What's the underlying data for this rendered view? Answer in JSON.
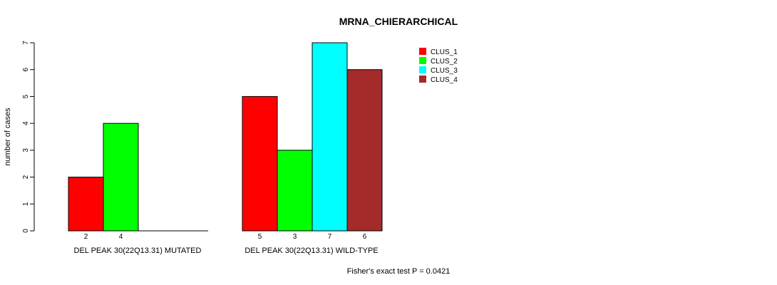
{
  "chart_data": {
    "type": "bar",
    "title": "MRNA_CHIERARCHICAL",
    "ylabel": "number of cases",
    "ylim": [
      0,
      7
    ],
    "yticks": [
      "0",
      "1",
      "2",
      "3",
      "4",
      "5",
      "6",
      "7"
    ],
    "groups": [
      {
        "label": "DEL PEAK 30(22Q13.31) MUTATED",
        "values": [
          2,
          4,
          0,
          0
        ],
        "count_labels": [
          "2",
          "4",
          "",
          ""
        ]
      },
      {
        "label": "DEL PEAK 30(22Q13.31) WILD-TYPE",
        "values": [
          5,
          3,
          7,
          6
        ],
        "count_labels": [
          "5",
          "3",
          "7",
          "6"
        ]
      }
    ],
    "series": [
      {
        "name": "CLUS_1",
        "color": "#ff0000"
      },
      {
        "name": "CLUS_2",
        "color": "#00ff00"
      },
      {
        "name": "CLUS_3",
        "color": "#00ffff"
      },
      {
        "name": "CLUS_4",
        "color": "#a52a2a"
      }
    ],
    "legend_position": "top-right",
    "footnote": "Fisher's exact test P = 0.0421"
  }
}
